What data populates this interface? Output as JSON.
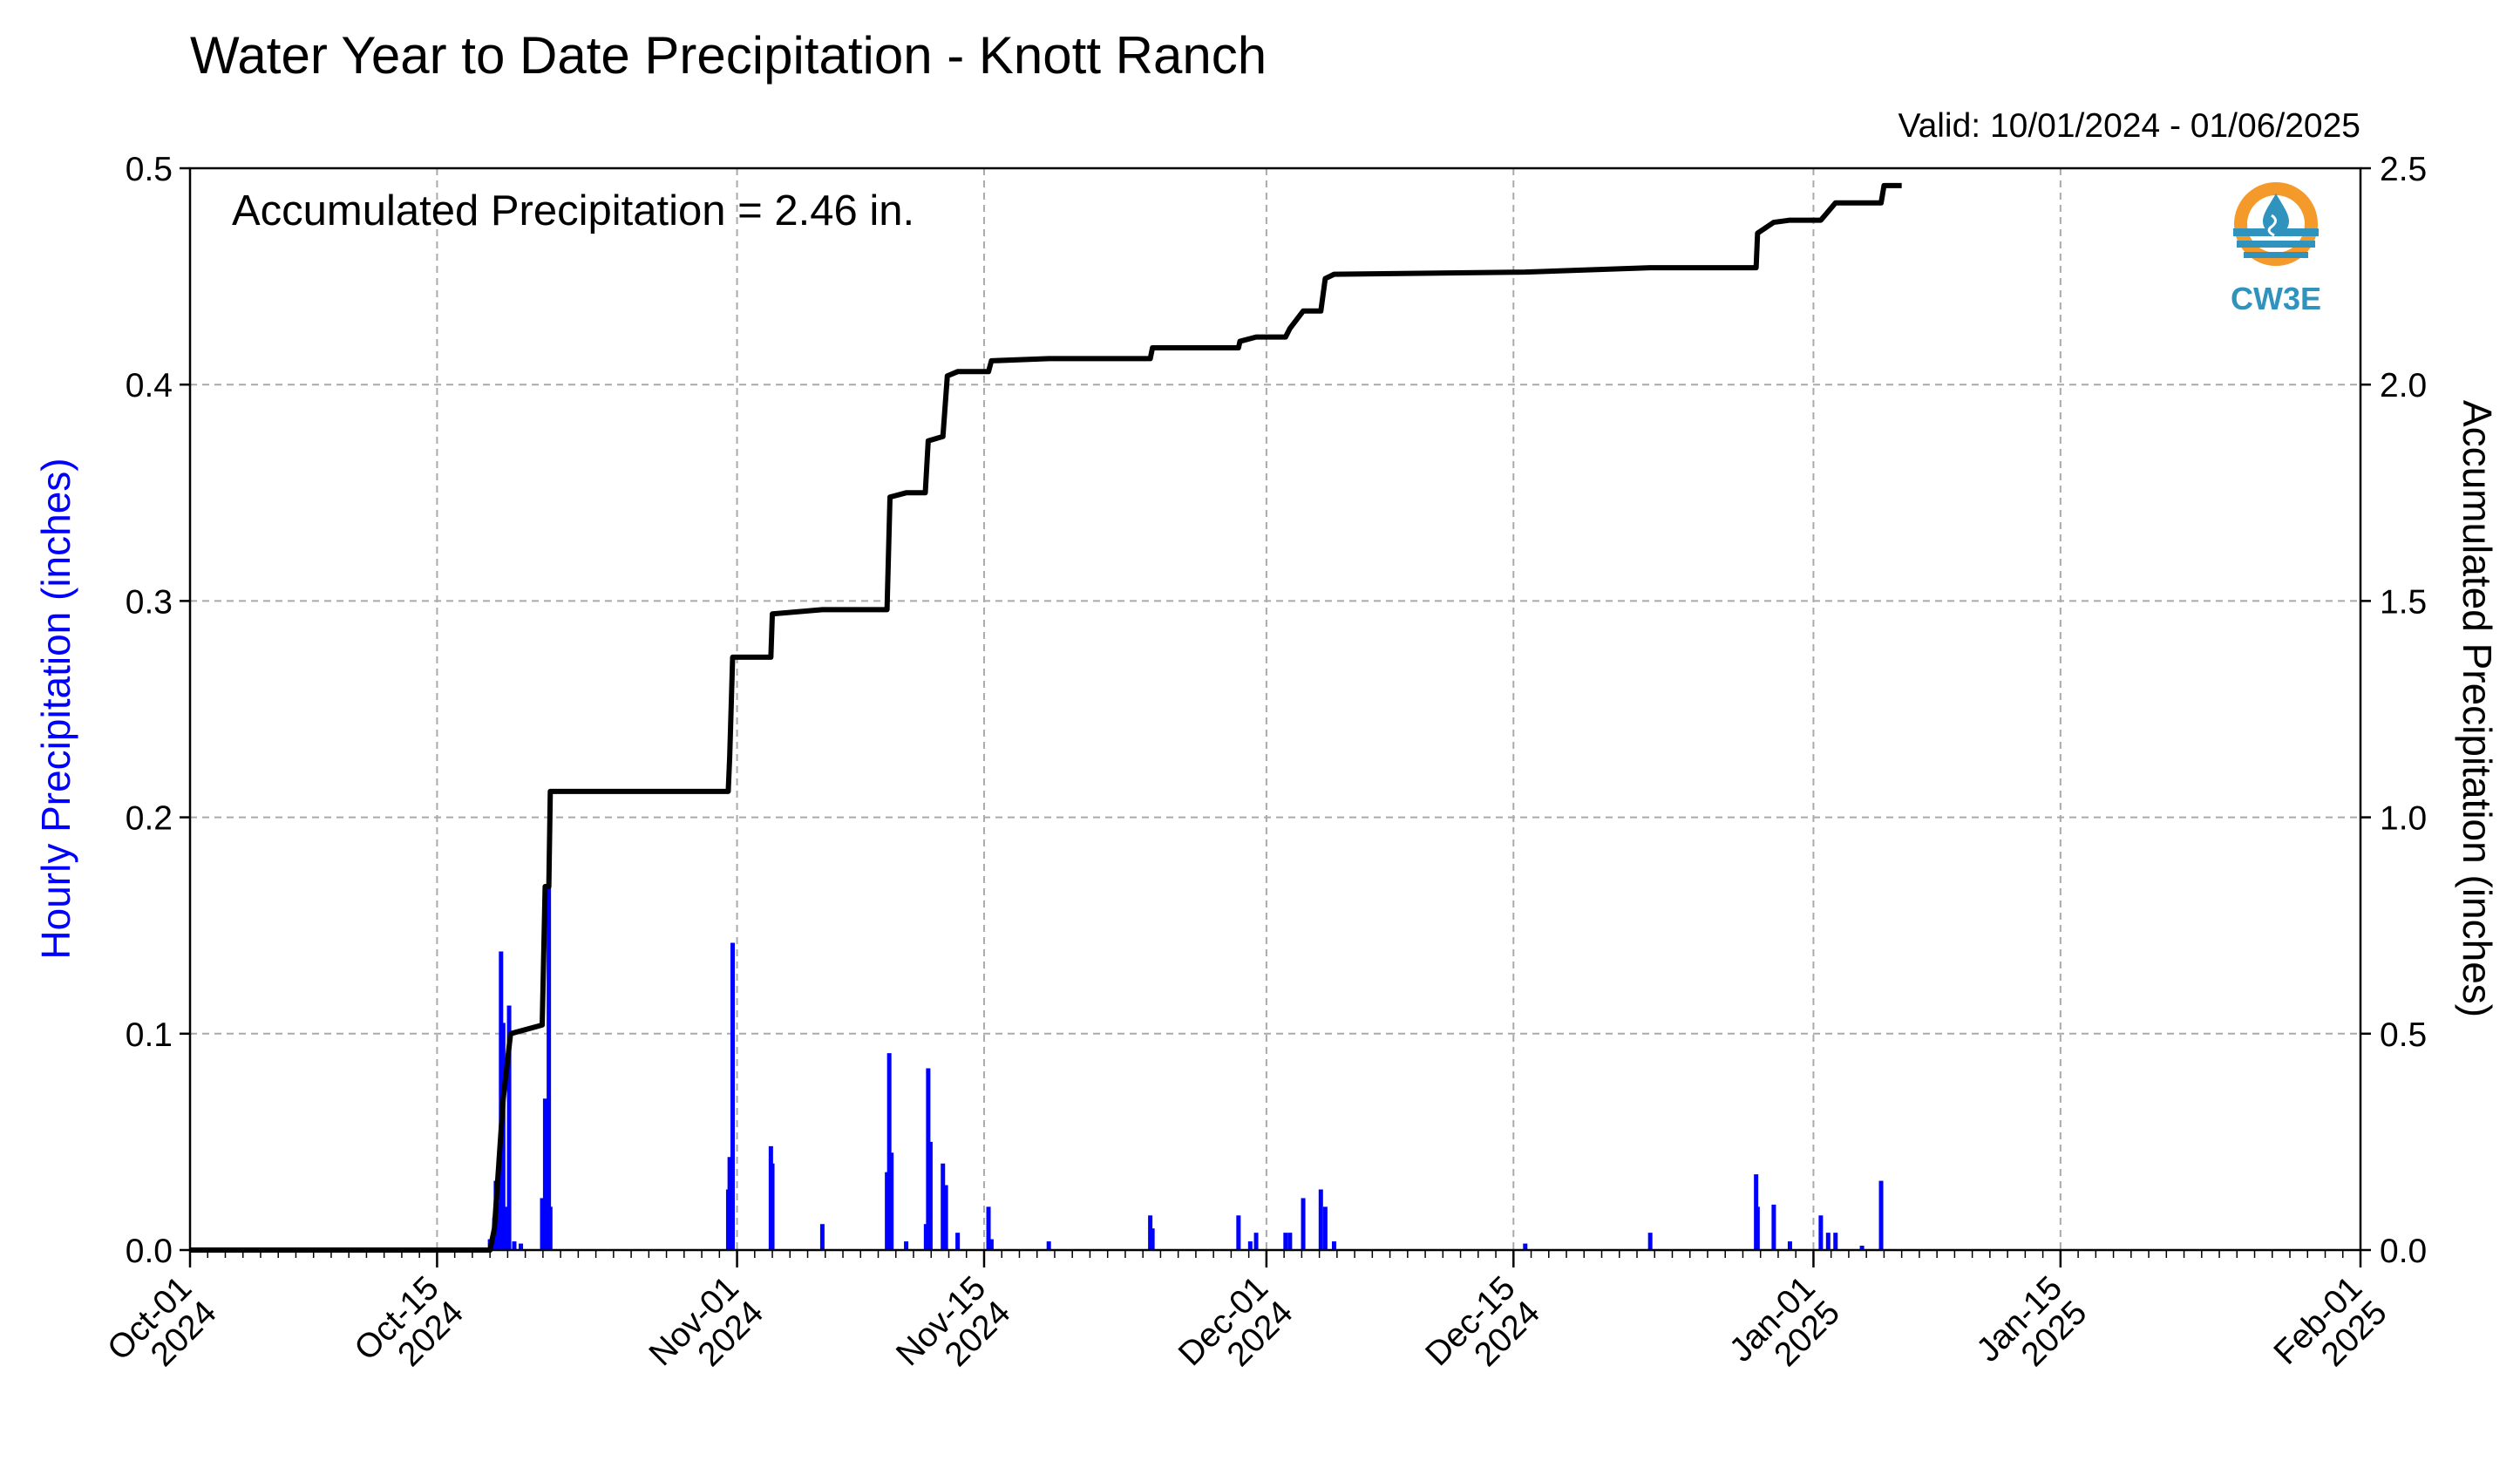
{
  "chart_data": {
    "type": "bar",
    "title": "Water Year to Date Precipitation - Knott Ranch",
    "subtitle": "Valid: 10/01/2024 - 01/06/2025",
    "annotation": "Accumulated Precipitation = 2.46 in.",
    "logo_text": "CW3E",
    "ylabel_left": "Hourly Precipitation (inches)",
    "ylabel_right": "Accumulated Precipitation (inches)",
    "xlim": [
      "2024-10-01",
      "2025-02-01"
    ],
    "ylim_left": [
      0,
      0.5
    ],
    "ylim_right": [
      0,
      2.5
    ],
    "yticks_left": [
      "0.0",
      "0.1",
      "0.2",
      "0.3",
      "0.4",
      "0.5"
    ],
    "yticks_right": [
      "0.0",
      "0.5",
      "1.0",
      "1.5",
      "2.0",
      "2.5"
    ],
    "xticks": [
      {
        "date": "2024-10-01",
        "label": [
          "Oct-01",
          "2024"
        ]
      },
      {
        "date": "2024-10-15",
        "label": [
          "Oct-15",
          "2024"
        ]
      },
      {
        "date": "2024-11-01",
        "label": [
          "Nov-01",
          "2024"
        ]
      },
      {
        "date": "2024-11-15",
        "label": [
          "Nov-15",
          "2024"
        ]
      },
      {
        "date": "2024-12-01",
        "label": [
          "Dec-01",
          "2024"
        ]
      },
      {
        "date": "2024-12-15",
        "label": [
          "Dec-15",
          "2024"
        ]
      },
      {
        "date": "2025-01-01",
        "label": [
          "Jan-01",
          "2025"
        ]
      },
      {
        "date": "2025-01-15",
        "label": [
          "Jan-15",
          "2025"
        ]
      },
      {
        "date": "2025-02-01",
        "label": [
          "Feb-01",
          "2025"
        ]
      }
    ],
    "grid": true,
    "colors": {
      "hourly": "#0000ff",
      "accumulated": "#000000",
      "grid": "#aaaaaa",
      "logo_orange": "#f39a2b",
      "logo_blue": "#2f93be"
    },
    "series": [
      {
        "name": "Hourly Precipitation",
        "type": "bar",
        "axis": "left",
        "points": [
          [
            "2024-10-18 00:00",
            0.005
          ],
          [
            "2024-10-18 06:00",
            0.015
          ],
          [
            "2024-10-18 08:00",
            0.032
          ],
          [
            "2024-10-18 12:00",
            0.022
          ],
          [
            "2024-10-18 15:00",
            0.138
          ],
          [
            "2024-10-18 18:00",
            0.105
          ],
          [
            "2024-10-18 21:00",
            0.02
          ],
          [
            "2024-10-19 02:00",
            0.113
          ],
          [
            "2024-10-19 09:00",
            0.004
          ],
          [
            "2024-10-19 18:00",
            0.003
          ],
          [
            "2024-10-20 23:00",
            0.024
          ],
          [
            "2024-10-21 03:00",
            0.07
          ],
          [
            "2024-10-21 08:00",
            0.168
          ],
          [
            "2024-10-21 10:00",
            0.02
          ],
          [
            "2024-10-31 12:00",
            0.028
          ],
          [
            "2024-10-31 14:00",
            0.043
          ],
          [
            "2024-10-31 18:00",
            0.142
          ],
          [
            "2024-11-02 22:00",
            0.048
          ],
          [
            "2024-11-03 00:00",
            0.04
          ],
          [
            "2024-11-05 20:00",
            0.012
          ],
          [
            "2024-11-09 12:00",
            0.036
          ],
          [
            "2024-11-09 15:00",
            0.091
          ],
          [
            "2024-11-09 18:00",
            0.045
          ],
          [
            "2024-11-10 14:00",
            0.004
          ],
          [
            "2024-11-11 17:00",
            0.012
          ],
          [
            "2024-11-11 20:00",
            0.084
          ],
          [
            "2024-11-11 23:00",
            0.05
          ],
          [
            "2024-11-12 16:00",
            0.04
          ],
          [
            "2024-11-12 20:00",
            0.03
          ],
          [
            "2024-11-13 12:00",
            0.008
          ],
          [
            "2024-11-15 06:00",
            0.02
          ],
          [
            "2024-11-15 10:00",
            0.005
          ],
          [
            "2024-11-18 16:00",
            0.004
          ],
          [
            "2024-11-24 10:00",
            0.016
          ],
          [
            "2024-11-24 13:00",
            0.01
          ],
          [
            "2024-11-29 10:00",
            0.016
          ],
          [
            "2024-11-30 02:00",
            0.004
          ],
          [
            "2024-11-30 10:00",
            0.008
          ],
          [
            "2024-12-02 02:00",
            0.008
          ],
          [
            "2024-12-02 08:00",
            0.008
          ],
          [
            "2024-12-03 02:00",
            0.024
          ],
          [
            "2024-12-04 02:00",
            0.028
          ],
          [
            "2024-12-04 08:00",
            0.02
          ],
          [
            "2024-12-04 20:00",
            0.004
          ],
          [
            "2024-12-15 16:00",
            0.003
          ],
          [
            "2024-12-22 18:00",
            0.008
          ],
          [
            "2024-12-28 18:00",
            0.035
          ],
          [
            "2024-12-28 20:00",
            0.02
          ],
          [
            "2024-12-29 18:00",
            0.021
          ],
          [
            "2024-12-30 16:00",
            0.004
          ],
          [
            "2025-01-01 10:00",
            0.016
          ],
          [
            "2025-01-01 20:00",
            0.008
          ],
          [
            "2025-01-02 06:00",
            0.008
          ],
          [
            "2025-01-03 18:00",
            0.002
          ],
          [
            "2025-01-04 20:00",
            0.032
          ]
        ]
      },
      {
        "name": "Accumulated Precipitation",
        "type": "step",
        "axis": "right",
        "points": [
          [
            "2024-10-01 00:00",
            0.0
          ],
          [
            "2024-10-18 00:00",
            0.0
          ],
          [
            "2024-10-18 06:00",
            0.05
          ],
          [
            "2024-10-18 12:00",
            0.2
          ],
          [
            "2024-10-18 18:00",
            0.35
          ],
          [
            "2024-10-19 04:00",
            0.5
          ],
          [
            "2024-10-20 23:00",
            0.52
          ],
          [
            "2024-10-21 03:00",
            0.84
          ],
          [
            "2024-10-21 08:00",
            0.84
          ],
          [
            "2024-10-21 10:00",
            1.06
          ],
          [
            "2024-10-31 12:00",
            1.06
          ],
          [
            "2024-10-31 14:00",
            1.14
          ],
          [
            "2024-10-31 18:00",
            1.37
          ],
          [
            "2024-11-02 22:00",
            1.37
          ],
          [
            "2024-11-03 00:00",
            1.47
          ],
          [
            "2024-11-05 20:00",
            1.48
          ],
          [
            "2024-11-09 12:00",
            1.48
          ],
          [
            "2024-11-09 16:00",
            1.74
          ],
          [
            "2024-11-10 14:00",
            1.75
          ],
          [
            "2024-11-11 16:00",
            1.75
          ],
          [
            "2024-11-11 20:00",
            1.87
          ],
          [
            "2024-11-12 16:00",
            1.88
          ],
          [
            "2024-11-12 22:00",
            2.02
          ],
          [
            "2024-11-13 12:00",
            2.03
          ],
          [
            "2024-11-15 06:00",
            2.03
          ],
          [
            "2024-11-15 10:00",
            2.055
          ],
          [
            "2024-11-18 16:00",
            2.06
          ],
          [
            "2024-11-24 10:00",
            2.06
          ],
          [
            "2024-11-24 13:00",
            2.085
          ],
          [
            "2024-11-29 10:00",
            2.085
          ],
          [
            "2024-11-29 12:00",
            2.1
          ],
          [
            "2024-11-30 10:00",
            2.11
          ],
          [
            "2024-12-02 02:00",
            2.11
          ],
          [
            "2024-12-02 08:00",
            2.13
          ],
          [
            "2024-12-03 02:00",
            2.17
          ],
          [
            "2024-12-04 02:00",
            2.17
          ],
          [
            "2024-12-04 08:00",
            2.245
          ],
          [
            "2024-12-04 20:00",
            2.255
          ],
          [
            "2024-12-15 16:00",
            2.26
          ],
          [
            "2024-12-22 18:00",
            2.27
          ],
          [
            "2024-12-28 18:00",
            2.27
          ],
          [
            "2024-12-28 20:00",
            2.35
          ],
          [
            "2024-12-29 18:00",
            2.375
          ],
          [
            "2024-12-30 16:00",
            2.38
          ],
          [
            "2025-01-01 10:00",
            2.38
          ],
          [
            "2025-01-01 20:00",
            2.4
          ],
          [
            "2025-01-02 06:00",
            2.42
          ],
          [
            "2025-01-04 20:00",
            2.42
          ],
          [
            "2025-01-05 00:00",
            2.46
          ],
          [
            "2025-01-06 00:00",
            2.46
          ]
        ]
      }
    ]
  }
}
